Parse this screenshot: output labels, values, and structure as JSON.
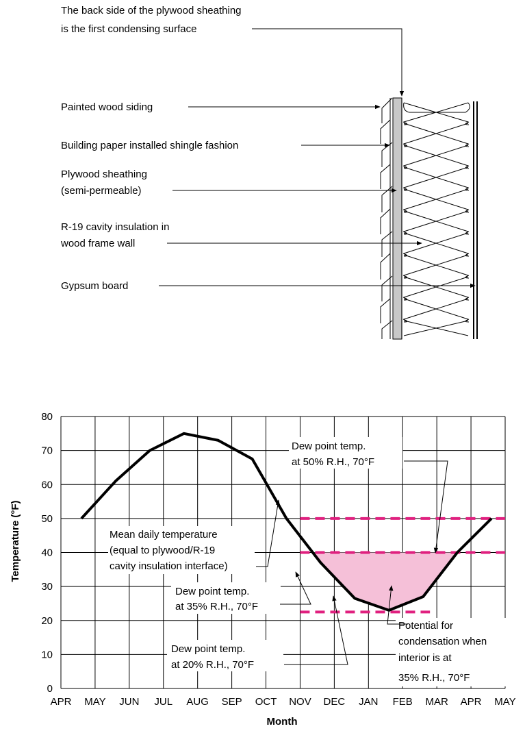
{
  "wall_diagram": {
    "labels": {
      "condensing_surface_line1": "The back side of the plywood sheathing",
      "condensing_surface_line2": "is the first condensing surface",
      "siding": "Painted wood siding",
      "building_paper": "Building paper installed shingle fashion",
      "sheathing_line1": "Plywood sheathing",
      "sheathing_line2": "(semi-permeable)",
      "insulation_line1": "R-19 cavity insulation in",
      "insulation_line2": "wood frame wall",
      "gypsum": "Gypsum board"
    }
  },
  "chart_data": {
    "type": "line",
    "categories": [
      "APR",
      "MAY",
      "JUN",
      "JUL",
      "AUG",
      "SEP",
      "OCT",
      "NOV",
      "DEC",
      "JAN",
      "FEB",
      "MAR",
      "APR",
      "MAY"
    ],
    "xlabel": "Month",
    "ylabel": "Temperature (°F)",
    "ylim": [
      0,
      80
    ],
    "yticks": [
      0,
      10,
      20,
      30,
      40,
      50,
      60,
      70,
      80
    ],
    "grid": true,
    "series": [
      {
        "kind": "curve",
        "color": "#000000",
        "points": [
          [
            0.6,
            50
          ],
          [
            1.6,
            61
          ],
          [
            2.6,
            70
          ],
          [
            3.6,
            75
          ],
          [
            4.6,
            73
          ],
          [
            5.6,
            67.5
          ],
          [
            6.6,
            50
          ],
          [
            7.6,
            37
          ],
          [
            8.6,
            26.5
          ],
          [
            9.6,
            23
          ],
          [
            10.6,
            27
          ],
          [
            11.6,
            40
          ],
          [
            12.6,
            50
          ]
        ]
      },
      {
        "kind": "dewpoint",
        "color": "#e0207f",
        "y": 50,
        "x_range": [
          7.0,
          13.0
        ]
      },
      {
        "kind": "dewpoint",
        "color": "#e0207f",
        "y": 40,
        "x_range": [
          7.0,
          13.0
        ]
      },
      {
        "kind": "dewpoint",
        "color": "#e0207f",
        "y": 22.5,
        "x_range": [
          7.0,
          10.8
        ]
      }
    ],
    "shaded_region": {
      "color": "#f5c0d8",
      "below_y": 40
    },
    "annotations": {
      "dew50_line1": "Dew point temp.",
      "dew50_line2": "at 50% R.H., 70°F",
      "mean_line1": "Mean daily temperature",
      "mean_line2": "(equal to plywood/R-19",
      "mean_line3": "cavity insulation interface)",
      "dew35_line1": "Dew point temp.",
      "dew35_line2": "at 35% R.H., 70°F",
      "dew20_line1": "Dew point temp.",
      "dew20_line2": "at 20% R.H., 70°F",
      "potential_line1": "Potential for",
      "potential_line2": "condensation when",
      "potential_line3": "interior is at",
      "potential_line4": "35% R.H., 70°F"
    }
  }
}
